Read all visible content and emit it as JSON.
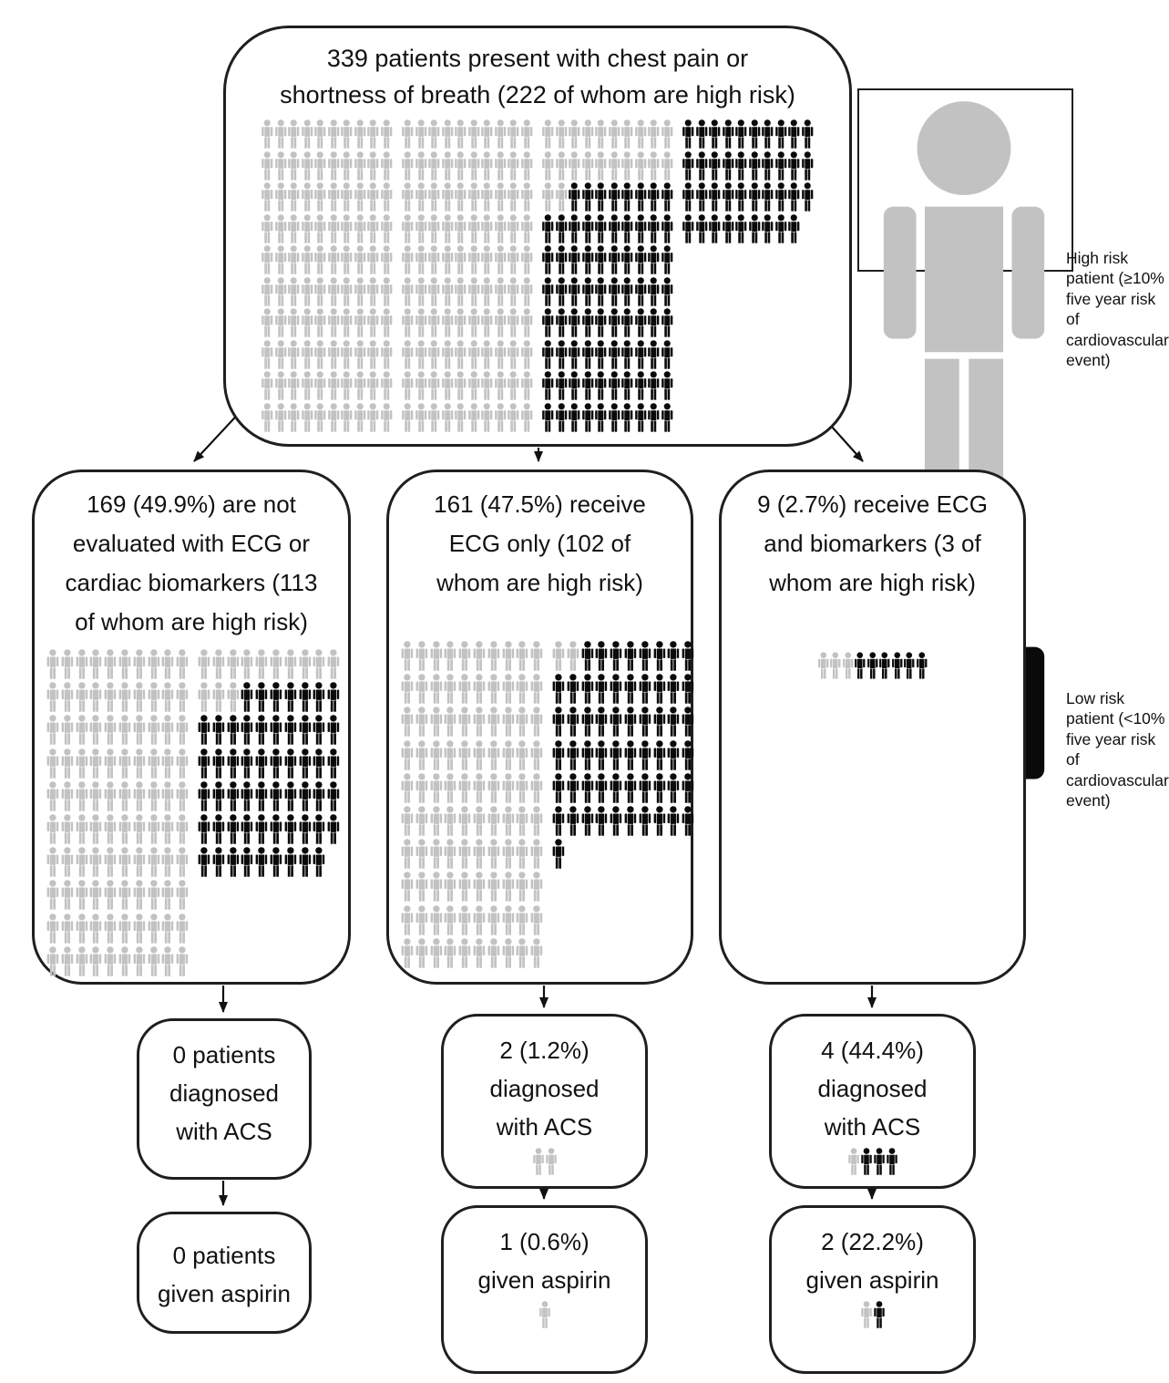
{
  "colors": {
    "high_risk": "#c2c2c2",
    "low_risk": "#0a0a0a",
    "border": "#1f1f1f",
    "arrow": "#111111",
    "background": "#ffffff"
  },
  "legend": {
    "high": {
      "icon": "high-risk-person",
      "label": "High risk patient (≥10% five year risk of cardiovascular event)"
    },
    "low": {
      "icon": "low-risk-person",
      "label": "Low risk patient (<10% five year risk of cardiovascular event)"
    }
  },
  "flow": {
    "root": {
      "label": "339 patients present with chest pain or shortness of breath (222 of whom are high risk)",
      "total": 339,
      "high_risk": 222,
      "low_risk": 117,
      "picto_rows": [
        [
          "gggggggggg",
          "gggggggggg",
          "gggggggggg",
          "bbbbbbbbbb"
        ],
        [
          "gggggggggg",
          "gggggggggg",
          "gggggggggg",
          "bbbbbbbbbb"
        ],
        [
          "gggggggggg",
          "gggggggggg",
          "ggbbbbbbbb",
          "bbbbbbbbbb"
        ],
        [
          "gggggggggg",
          "gggggggggg",
          "bbbbbbbbbb",
          "bbbbbbbbb"
        ],
        [
          "gggggggggg",
          "gggggggggg",
          "bbbbbbbbbb"
        ],
        [
          "gggggggggg",
          "gggggggggg",
          "bbbbbbbbbb"
        ],
        [
          "gggggggggg",
          "gggggggggg",
          "bbbbbbbbbb"
        ],
        [
          "gggggggggg",
          "gggggggggg",
          "bbbbbbbbbb"
        ],
        [
          "gggggggggg",
          "gggggggggg",
          "bbbbbbbbbb"
        ],
        [
          "gggggggggg",
          "gggggggggg",
          "bbbbbbbbbb"
        ]
      ]
    },
    "branches": [
      {
        "id": "not-evaluated",
        "label": "169 (49.9%) are not evaluated with ECG or cardiac biomarkers (113 of whom are high risk)",
        "total": 169,
        "pct": "49.9%",
        "high_risk": 113,
        "low_risk": 56,
        "picto_rows": [
          [
            "gggggggggg",
            "gggggggggg"
          ],
          [
            "gggggggggg",
            "gggbbbbbbb"
          ],
          [
            "gggggggggg",
            "bbbbbbbbbb"
          ],
          [
            "gggggggggg",
            "bbbbbbbbbb"
          ],
          [
            "gggggggggg",
            "bbbbbbbbbb"
          ],
          [
            "gggggggggg",
            "bbbbbbbbbb"
          ],
          [
            "gggggggggg",
            "bbbbbbbbb"
          ],
          [
            "gggggggggg"
          ],
          [
            "gggggggggg"
          ],
          [
            "gggggggggg"
          ]
        ],
        "acs": {
          "label": "0 patients diagnosed with ACS",
          "n": 0,
          "picto_rows": []
        },
        "aspirin": {
          "label": "0 patients given aspirin",
          "n": 0,
          "picto_rows": []
        }
      },
      {
        "id": "ecg-only",
        "label": "161 (47.5%) receive ECG only (102 of whom are high risk)",
        "total": 161,
        "pct": "47.5%",
        "high_risk": 102,
        "low_risk": 59,
        "picto_rows": [
          [
            "gggggggggg",
            "ggbbbbbbbb"
          ],
          [
            "gggggggggg",
            "bbbbbbbbbb"
          ],
          [
            "gggggggggg",
            "bbbbbbbbbb"
          ],
          [
            "gggggggggg",
            "bbbbbbbbbb"
          ],
          [
            "gggggggggg",
            "bbbbbbbbbb"
          ],
          [
            "gggggggggg",
            "bbbbbbbbbb"
          ],
          [
            "gggggggggg",
            "b"
          ],
          [
            "gggggggggg"
          ],
          [
            "gggggggggg"
          ],
          [
            "gggggggggg"
          ]
        ],
        "acs": {
          "label": "2 (1.2%) diagnosed with ACS",
          "n": 2,
          "pct": "1.2%",
          "picto_rows": [
            [
              "gg"
            ]
          ]
        },
        "aspirin": {
          "label": "1 (0.6%) given aspirin",
          "n": 1,
          "pct": "0.6%",
          "picto_rows": [
            [
              "g"
            ]
          ]
        }
      },
      {
        "id": "ecg-and-biomarkers",
        "label": "9 (2.7%) receive ECG and biomarkers (3 of whom are high risk)",
        "total": 9,
        "pct": "2.7%",
        "high_risk": 3,
        "low_risk": 6,
        "picto_rows": [
          [
            "gggbbbbbb"
          ]
        ],
        "acs": {
          "label": "4 (44.4%) diagnosed with ACS",
          "n": 4,
          "pct": "44.4%",
          "picto_rows": [
            [
              "gbbb"
            ]
          ]
        },
        "aspirin": {
          "label": "2 (22.2%) given aspirin",
          "n": 2,
          "pct": "22.2%",
          "picto_rows": [
            [
              "gb"
            ]
          ]
        }
      }
    ]
  },
  "chart_data": {
    "type": "pictograph-flowchart",
    "unit": "1 person icon = 1 patient",
    "legend": {
      "gray": "High risk patient (≥10% five year risk of cardiovascular event)",
      "black": "Low risk patient (<10% five year risk of cardiovascular event)"
    },
    "root": {
      "label": "Patients present with chest pain or shortness of breath",
      "total": 339,
      "high_risk": 222,
      "low_risk": 117
    },
    "branches": [
      {
        "label": "Not evaluated with ECG or cardiac biomarkers",
        "total": 169,
        "pct": 49.9,
        "high_risk": 113,
        "low_risk": 56,
        "diagnosed_acs_n": 0,
        "diagnosed_acs_pct": null,
        "given_aspirin_n": 0,
        "given_aspirin_pct": null
      },
      {
        "label": "Receive ECG only",
        "total": 161,
        "pct": 47.5,
        "high_risk": 102,
        "low_risk": 59,
        "diagnosed_acs_n": 2,
        "diagnosed_acs_pct": 1.2,
        "given_aspirin_n": 1,
        "given_aspirin_pct": 0.6
      },
      {
        "label": "Receive ECG and biomarkers",
        "total": 9,
        "pct": 2.7,
        "high_risk": 3,
        "low_risk": 6,
        "diagnosed_acs_n": 4,
        "diagnosed_acs_pct": 44.4,
        "given_aspirin_n": 2,
        "given_aspirin_pct": 22.2
      }
    ]
  }
}
